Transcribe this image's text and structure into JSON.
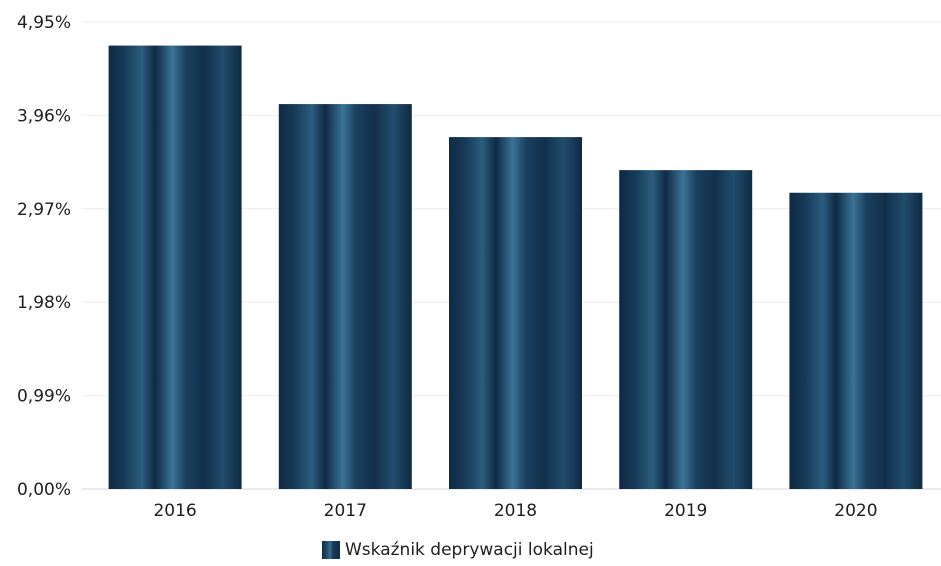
{
  "chart_data": {
    "type": "bar",
    "categories": [
      "2016",
      "2017",
      "2018",
      "2019",
      "2020"
    ],
    "series": [
      {
        "name": "Wskaźnik deprywacji lokalnej",
        "values": [
          4.7,
          4.08,
          3.73,
          3.38,
          3.14
        ]
      }
    ],
    "ylim": [
      0,
      4.95
    ],
    "yticks": [
      0,
      0.99,
      1.98,
      2.97,
      3.96,
      4.95
    ],
    "ytick_labels": [
      "0,00%",
      "0,99%",
      "1,98%",
      "2,97%",
      "3,96%",
      "4,95%"
    ],
    "grid": true,
    "legend_position": "bottom",
    "colors": {
      "bar_dark": "#0f2a44",
      "bar_light": "#3a7396",
      "grid": "#ececf2",
      "axis": "#d0d6e2"
    }
  }
}
